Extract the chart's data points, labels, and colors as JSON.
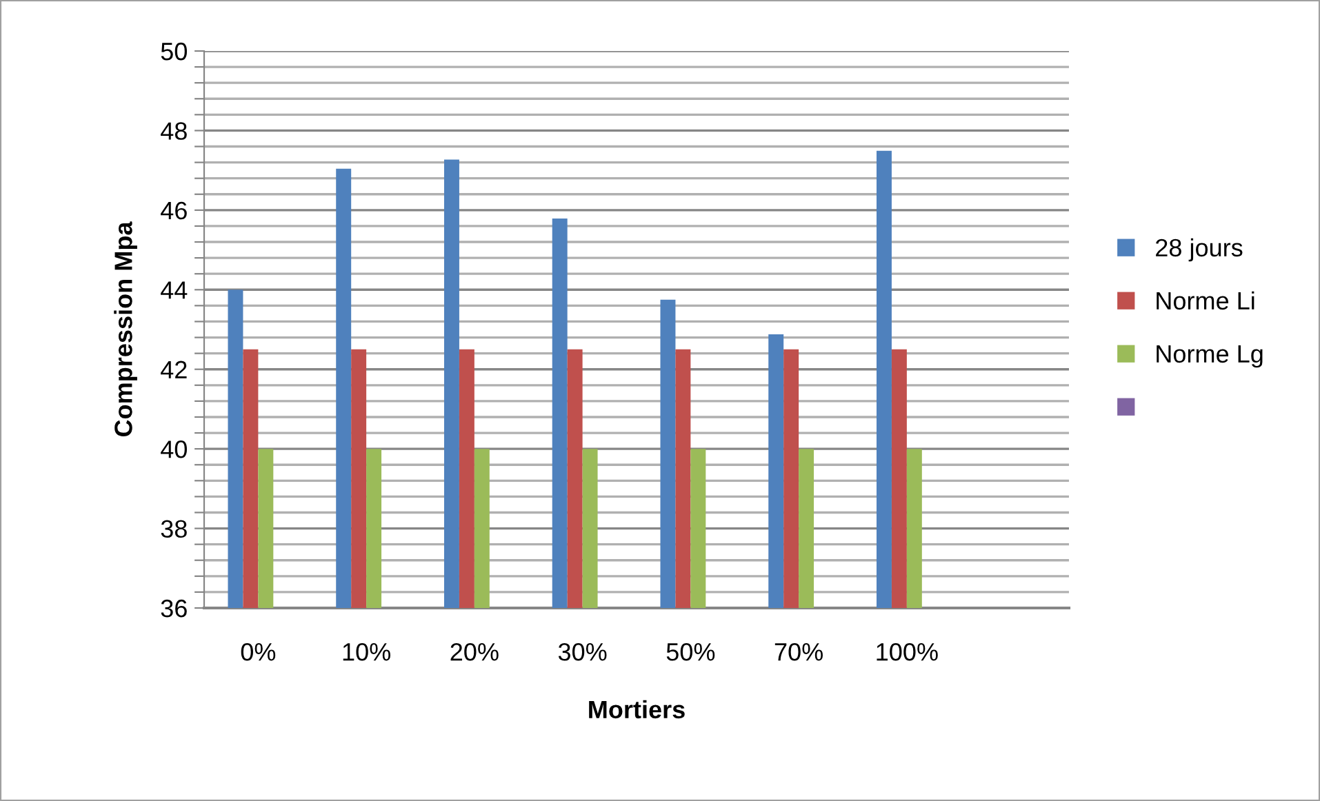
{
  "chart_data": {
    "type": "bar",
    "xlabel": "Mortiers",
    "ylabel": "Compression Mpa",
    "categories": [
      "0%",
      "10%",
      "20%",
      "30%",
      "50%",
      "70%",
      "100%",
      null
    ],
    "series": [
      {
        "name": "28 jours",
        "color": "#4f81bd",
        "values": [
          44.0,
          47.04,
          47.27,
          45.79,
          43.75,
          42.88,
          47.49,
          null
        ]
      },
      {
        "name": "Norme Li",
        "color": "#c0504d",
        "values": [
          42.5,
          42.5,
          42.5,
          42.5,
          42.5,
          42.5,
          42.5,
          null
        ]
      },
      {
        "name": "Norme Lg",
        "color": "#9bbb59",
        "values": [
          40,
          40,
          40,
          40,
          40,
          40,
          40,
          null
        ]
      },
      {
        "color": "#8064a2",
        "values": [
          null,
          null,
          null,
          null,
          null,
          null,
          null,
          null
        ]
      }
    ],
    "ylim": [
      36,
      50
    ],
    "yticks": [
      36,
      {
        "value": 36.4,
        "label": null
      },
      {
        "value": 36.8,
        "label": null
      },
      {
        "value": 37.2,
        "label": null
      },
      {
        "value": 37.6,
        "label": null
      },
      38,
      {
        "value": 38.4,
        "label": null
      },
      {
        "value": 38.8,
        "label": null
      },
      {
        "value": 39.2,
        "label": null
      },
      {
        "value": 39.6,
        "label": null
      },
      40,
      {
        "value": 40.4,
        "label": null
      },
      {
        "value": 40.8,
        "label": null
      },
      {
        "value": 41.2,
        "label": null
      },
      {
        "value": 41.6,
        "label": null
      },
      42,
      {
        "value": 42.4,
        "label": null
      },
      {
        "value": 42.8,
        "label": null
      },
      {
        "value": 43.2,
        "label": null
      },
      {
        "value": 43.6,
        "label": null
      },
      44,
      {
        "value": 44.4,
        "label": null
      },
      {
        "value": 44.8,
        "label": null
      },
      {
        "value": 45.2,
        "label": null
      },
      {
        "value": 45.6,
        "label": null
      },
      46,
      {
        "value": 46.4,
        "label": null
      },
      {
        "value": 46.8,
        "label": null
      },
      {
        "value": 47.2,
        "label": null
      },
      {
        "value": 47.6,
        "label": null
      },
      48,
      {
        "value": 48.4,
        "label": null
      },
      {
        "value": 48.8,
        "label": null
      },
      {
        "value": 49.2,
        "label": null
      },
      {
        "value": 49.6,
        "label": null
      },
      50
    ],
    "grid": "y",
    "legend": "right"
  }
}
